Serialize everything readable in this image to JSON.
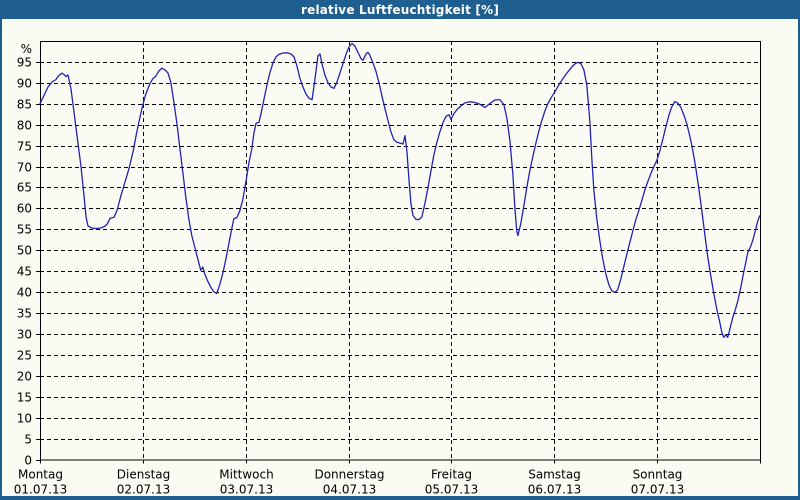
{
  "window": {
    "title": "relative Luftfeuchtigkeit [%]",
    "frame_color": "#1f5f8f",
    "content_background": "#fafcf4"
  },
  "chart_data": {
    "type": "line",
    "title": "relative Luftfeuchtigkeit [%]",
    "ylabel": "%",
    "ylim": [
      0,
      100
    ],
    "ytick_step": 5,
    "yticks": [
      0,
      5,
      10,
      15,
      20,
      25,
      30,
      35,
      40,
      45,
      50,
      55,
      60,
      65,
      70,
      75,
      80,
      85,
      90,
      95
    ],
    "grid": true,
    "grid_style": "dashed",
    "line_color": "#2222b2",
    "axis_color": "#000000",
    "days": [
      {
        "name": "Montag",
        "date": "01.07.13"
      },
      {
        "name": "Dienstag",
        "date": "02.07.13"
      },
      {
        "name": "Mittwoch",
        "date": "03.07.13"
      },
      {
        "name": "Donnerstag",
        "date": "04.07.13"
      },
      {
        "name": "Freitag",
        "date": "05.07.13"
      },
      {
        "name": "Samstag",
        "date": "06.07.13"
      },
      {
        "name": "Sonntag",
        "date": "07.07.13"
      }
    ],
    "series": [
      {
        "name": "relative Luftfeuchtigkeit",
        "unit": "%",
        "color": "#2222b2",
        "points": [
          [
            0.0,
            85
          ],
          [
            0.039,
            87
          ],
          [
            0.078,
            89
          ],
          [
            0.117,
            90.2
          ],
          [
            0.156,
            90.8
          ],
          [
            0.185,
            91.8
          ],
          [
            0.214,
            92.3
          ],
          [
            0.233,
            92.0
          ],
          [
            0.253,
            91.5
          ],
          [
            0.272,
            91.9
          ],
          [
            0.301,
            88.5
          ],
          [
            0.331,
            83
          ],
          [
            0.369,
            75.5
          ],
          [
            0.399,
            70
          ],
          [
            0.428,
            63
          ],
          [
            0.447,
            58
          ],
          [
            0.467,
            55.8
          ],
          [
            0.506,
            55.3
          ],
          [
            0.544,
            55.2
          ],
          [
            0.583,
            55.3
          ],
          [
            0.622,
            55.6
          ],
          [
            0.651,
            56.2
          ],
          [
            0.681,
            57.6
          ],
          [
            0.719,
            57.9
          ],
          [
            0.749,
            59.5
          ],
          [
            0.787,
            63
          ],
          [
            0.826,
            66.3
          ],
          [
            0.865,
            69.5
          ],
          [
            0.904,
            73.5
          ],
          [
            0.943,
            78.5
          ],
          [
            0.972,
            81.8
          ],
          [
            1.0,
            84.8
          ],
          [
            1.029,
            87.3
          ],
          [
            1.068,
            89.8
          ],
          [
            1.097,
            91
          ],
          [
            1.126,
            91.6
          ],
          [
            1.155,
            92.8
          ],
          [
            1.184,
            93.5
          ],
          [
            1.214,
            93.1
          ],
          [
            1.243,
            92.4
          ],
          [
            1.272,
            90.2
          ],
          [
            1.301,
            85.5
          ],
          [
            1.33,
            80.5
          ],
          [
            1.359,
            74.5
          ],
          [
            1.389,
            68.5
          ],
          [
            1.418,
            62.5
          ],
          [
            1.447,
            57.5
          ],
          [
            1.476,
            53.5
          ],
          [
            1.515,
            49.8
          ],
          [
            1.544,
            47
          ],
          [
            1.563,
            45.2
          ],
          [
            1.583,
            46
          ],
          [
            1.602,
            44.3
          ],
          [
            1.631,
            42.6
          ],
          [
            1.66,
            41.2
          ],
          [
            1.69,
            40.1
          ],
          [
            1.719,
            39.7
          ],
          [
            1.748,
            41.8
          ],
          [
            1.777,
            44.5
          ],
          [
            1.806,
            47.8
          ],
          [
            1.836,
            51.5
          ],
          [
            1.865,
            55.2
          ],
          [
            1.884,
            57.5
          ],
          [
            1.913,
            57.8
          ],
          [
            1.942,
            59.3
          ],
          [
            1.971,
            62
          ],
          [
            2.003,
            66.5
          ],
          [
            2.032,
            71
          ],
          [
            2.061,
            74.5
          ],
          [
            2.08,
            78
          ],
          [
            2.1,
            80.3
          ],
          [
            2.129,
            80.6
          ],
          [
            2.148,
            82.5
          ],
          [
            2.177,
            86
          ],
          [
            2.207,
            89.5
          ],
          [
            2.236,
            92.5
          ],
          [
            2.265,
            94.8
          ],
          [
            2.294,
            96.2
          ],
          [
            2.323,
            96.8
          ],
          [
            2.362,
            97.1
          ],
          [
            2.401,
            97.2
          ],
          [
            2.44,
            96.9
          ],
          [
            2.469,
            96.2
          ],
          [
            2.499,
            94
          ],
          [
            2.528,
            91
          ],
          [
            2.557,
            89
          ],
          [
            2.586,
            87.3
          ],
          [
            2.615,
            86.3
          ],
          [
            2.645,
            86.0
          ],
          [
            2.674,
            91
          ],
          [
            2.703,
            96.5
          ],
          [
            2.722,
            96.9
          ],
          [
            2.742,
            94.5
          ],
          [
            2.771,
            91.8
          ],
          [
            2.8,
            90
          ],
          [
            2.829,
            89
          ],
          [
            2.858,
            88.7
          ],
          [
            2.887,
            90.2
          ],
          [
            2.916,
            92.3
          ],
          [
            2.946,
            94.6
          ],
          [
            2.975,
            96.8
          ],
          [
            3.004,
            98.6
          ],
          [
            3.033,
            99.4
          ],
          [
            3.062,
            98.8
          ],
          [
            3.091,
            97.3
          ],
          [
            3.121,
            95.8
          ],
          [
            3.14,
            95.4
          ],
          [
            3.169,
            96.9
          ],
          [
            3.189,
            97.3
          ],
          [
            3.208,
            96.5
          ],
          [
            3.237,
            94.8
          ],
          [
            3.266,
            92.8
          ],
          [
            3.296,
            90
          ],
          [
            3.325,
            86.8
          ],
          [
            3.354,
            83.8
          ],
          [
            3.383,
            81
          ],
          [
            3.412,
            78.3
          ],
          [
            3.441,
            76.4
          ],
          [
            3.471,
            75.8
          ],
          [
            3.5,
            75.6
          ],
          [
            3.529,
            75.4
          ],
          [
            3.549,
            77.4
          ],
          [
            3.568,
            73.5
          ],
          [
            3.587,
            67
          ],
          [
            3.607,
            61
          ],
          [
            3.626,
            58.3
          ],
          [
            3.655,
            57.4
          ],
          [
            3.684,
            57.3
          ],
          [
            3.713,
            58
          ],
          [
            3.743,
            61.3
          ],
          [
            3.772,
            65
          ],
          [
            3.801,
            69
          ],
          [
            3.83,
            72.8
          ],
          [
            3.859,
            75.8
          ],
          [
            3.888,
            78.3
          ],
          [
            3.918,
            80.5
          ],
          [
            3.947,
            82
          ],
          [
            3.976,
            82.4
          ],
          [
            3.995,
            81.3
          ],
          [
            4.024,
            82.6
          ],
          [
            4.053,
            83.6
          ],
          [
            4.092,
            84.5
          ],
          [
            4.131,
            85.2
          ],
          [
            4.18,
            85.5
          ],
          [
            4.228,
            85.3
          ],
          [
            4.277,
            84.9
          ],
          [
            4.326,
            84.1
          ],
          [
            4.374,
            85.1
          ],
          [
            4.423,
            85.9
          ],
          [
            4.471,
            86.0
          ],
          [
            4.51,
            84.8
          ],
          [
            4.539,
            81.5
          ],
          [
            4.569,
            76
          ],
          [
            4.598,
            68
          ],
          [
            4.617,
            60
          ],
          [
            4.636,
            54.5
          ],
          [
            4.646,
            53.5
          ],
          [
            4.675,
            56.5
          ],
          [
            4.704,
            60.5
          ],
          [
            4.733,
            65
          ],
          [
            4.762,
            69
          ],
          [
            4.791,
            72.3
          ],
          [
            4.82,
            75.5
          ],
          [
            4.85,
            78.5
          ],
          [
            4.879,
            81
          ],
          [
            4.908,
            83.2
          ],
          [
            4.937,
            85
          ],
          [
            4.966,
            86.3
          ],
          [
            4.996,
            87.5
          ],
          [
            5.025,
            88.7
          ],
          [
            5.054,
            89.9
          ],
          [
            5.083,
            91
          ],
          [
            5.112,
            92
          ],
          [
            5.141,
            92.9
          ],
          [
            5.171,
            93.8
          ],
          [
            5.2,
            94.5
          ],
          [
            5.229,
            94.9
          ],
          [
            5.258,
            94.6
          ],
          [
            5.287,
            93.2
          ],
          [
            5.316,
            89.5
          ],
          [
            5.345,
            81
          ],
          [
            5.365,
            72
          ],
          [
            5.384,
            64.5
          ],
          [
            5.413,
            57.5
          ],
          [
            5.442,
            52.5
          ],
          [
            5.471,
            48
          ],
          [
            5.5,
            44.5
          ],
          [
            5.53,
            41.8
          ],
          [
            5.559,
            40.3
          ],
          [
            5.588,
            39.9
          ],
          [
            5.617,
            40.6
          ],
          [
            5.646,
            43
          ],
          [
            5.675,
            46
          ],
          [
            5.704,
            48.9
          ],
          [
            5.734,
            51.8
          ],
          [
            5.763,
            54.6
          ],
          [
            5.792,
            57.2
          ],
          [
            5.821,
            59.4
          ],
          [
            5.85,
            61.8
          ],
          [
            5.879,
            64.3
          ],
          [
            5.909,
            66.4
          ],
          [
            5.938,
            68.3
          ],
          [
            5.967,
            69.9
          ],
          [
            5.996,
            71.4
          ],
          [
            6.025,
            73.6
          ],
          [
            6.055,
            76.5
          ],
          [
            6.084,
            79.4
          ],
          [
            6.113,
            82.2
          ],
          [
            6.142,
            84.2
          ],
          [
            6.171,
            85.5
          ],
          [
            6.2,
            85.2
          ],
          [
            6.229,
            84.2
          ],
          [
            6.259,
            82.4
          ],
          [
            6.288,
            80.2
          ],
          [
            6.317,
            77.4
          ],
          [
            6.346,
            74
          ],
          [
            6.375,
            69.8
          ],
          [
            6.404,
            65
          ],
          [
            6.434,
            59.5
          ],
          [
            6.463,
            53.8
          ],
          [
            6.492,
            48.5
          ],
          [
            6.521,
            44
          ],
          [
            6.55,
            39.8
          ],
          [
            6.579,
            36
          ],
          [
            6.609,
            32.8
          ],
          [
            6.628,
            30.5
          ],
          [
            6.647,
            29.2
          ],
          [
            6.667,
            29.8
          ],
          [
            6.686,
            29.2
          ],
          [
            6.705,
            31
          ],
          [
            6.734,
            33.8
          ],
          [
            6.754,
            35.3
          ],
          [
            6.783,
            37.8
          ],
          [
            6.812,
            41
          ],
          [
            6.841,
            44.6
          ],
          [
            6.861,
            47
          ],
          [
            6.88,
            49.4
          ],
          [
            6.909,
            50.9
          ],
          [
            6.929,
            52.3
          ],
          [
            6.958,
            55
          ],
          [
            6.977,
            56.8
          ],
          [
            6.996,
            58.2
          ]
        ]
      }
    ]
  }
}
